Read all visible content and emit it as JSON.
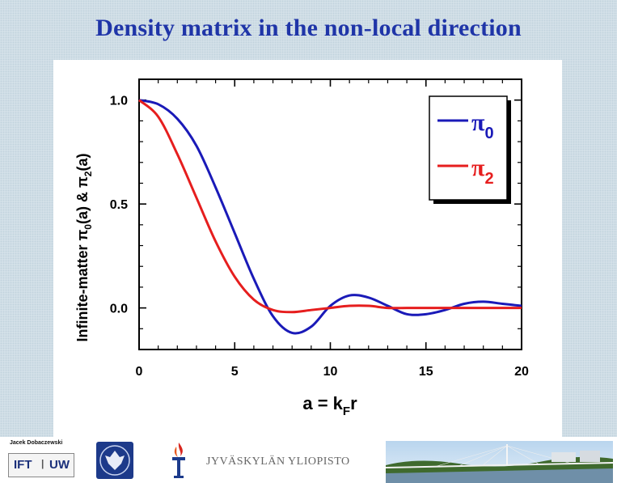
{
  "slide": {
    "title": "Density matrix in the  non-local direction"
  },
  "footer": {
    "author": "Jacek Dobaczewski",
    "ift_logo_left": "IFT",
    "ift_logo_right": "UW",
    "university_name": "JYVÄSKYLÄN YLIOPISTO"
  },
  "colors": {
    "title": "#1f35a8",
    "pi0": "#1a1ab8",
    "pi2": "#e61e1e"
  },
  "chart_data": {
    "type": "line",
    "title": "",
    "xlabel": "a = k",
    "xlabel_sub": "F",
    "xlabel_suffix": "r",
    "ylabel": "Infinite-matter π0(a) & π2(a)",
    "ylabel_parts": {
      "a": "Infinite-matter ",
      "b": "π",
      "c": "0",
      "d": "(a) & ",
      "e": "π",
      "f": "2",
      "g": "(a)"
    },
    "xlim": [
      0,
      20
    ],
    "ylim": [
      -0.2,
      1.1
    ],
    "xticks": [
      0,
      5,
      10,
      15,
      20
    ],
    "xtick_labels": [
      "0",
      "5",
      "10",
      "15",
      "20"
    ],
    "yticks": [
      0.0,
      0.5,
      1.0
    ],
    "ytick_labels": [
      "0.0",
      "0.5",
      "1.0"
    ],
    "legend_position": "top-right",
    "series": [
      {
        "name": "π0",
        "symbol": "π",
        "subscript": "0",
        "color": "#1a1ab8",
        "x": [
          0,
          1,
          2,
          3,
          4,
          5,
          6,
          7,
          8,
          9,
          10,
          11,
          12,
          13,
          14,
          15,
          16,
          17,
          18,
          19,
          20
        ],
        "y": [
          1.0,
          0.98,
          0.91,
          0.78,
          0.58,
          0.36,
          0.14,
          -0.04,
          -0.12,
          -0.09,
          0.01,
          0.06,
          0.05,
          0.01,
          -0.03,
          -0.03,
          -0.01,
          0.02,
          0.03,
          0.02,
          0.01
        ]
      },
      {
        "name": "π2",
        "symbol": "π",
        "subscript": "2",
        "color": "#e61e1e",
        "x": [
          0,
          1,
          2,
          3,
          4,
          5,
          6,
          7,
          8,
          9,
          10,
          11,
          12,
          13,
          14,
          15,
          16,
          17,
          18,
          19,
          20
        ],
        "y": [
          1.0,
          0.92,
          0.74,
          0.53,
          0.32,
          0.15,
          0.04,
          -0.01,
          -0.02,
          -0.01,
          0.0,
          0.01,
          0.01,
          0.0,
          0.0,
          0.0,
          0.0,
          0.0,
          0.0,
          0.0,
          0.0
        ]
      }
    ]
  }
}
